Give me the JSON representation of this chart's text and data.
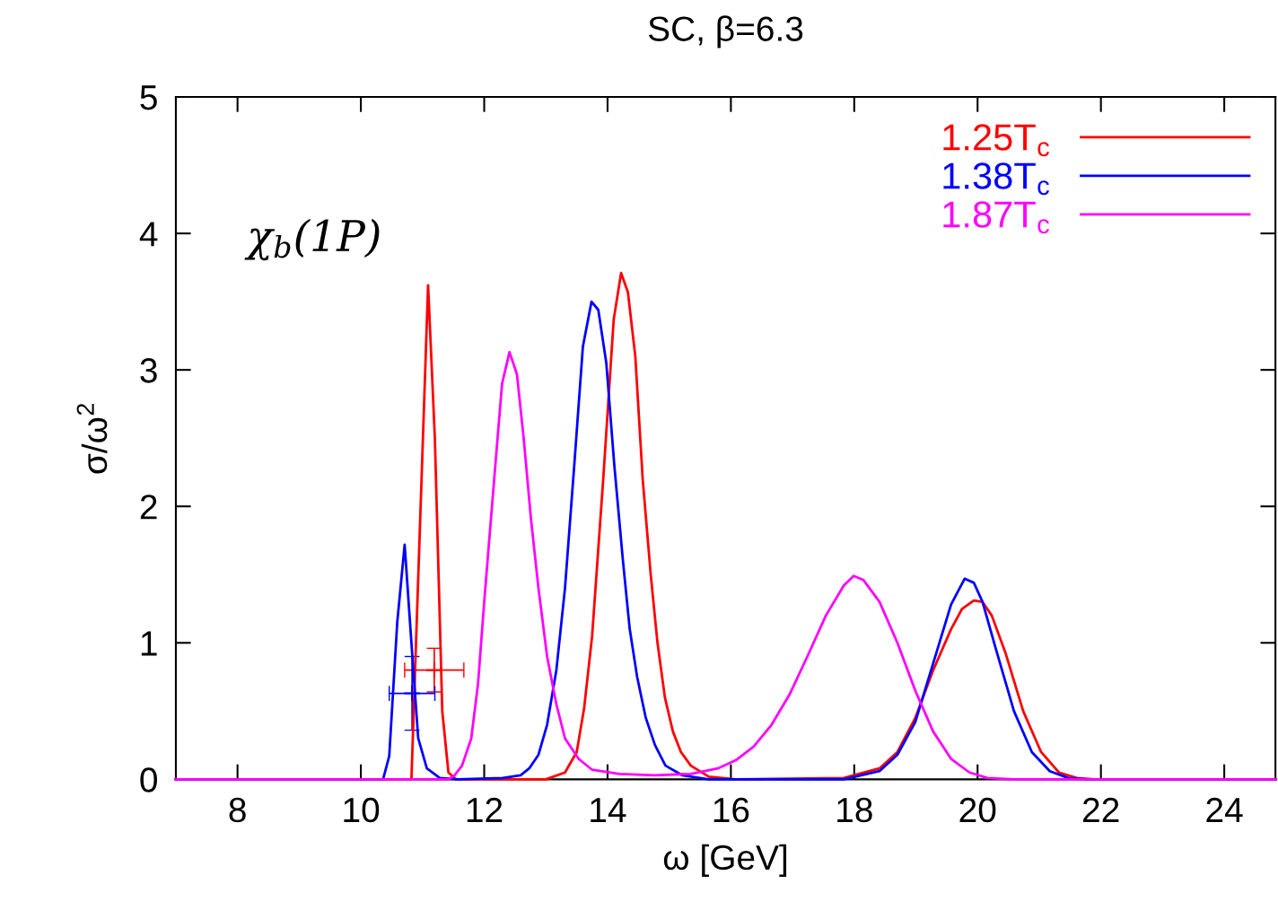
{
  "chart_data": {
    "type": "line",
    "title": "SC, β=6.3",
    "xlabel": "ω [GeV]",
    "ylabel": "σ/ω$^{2}$",
    "xlim": [
      7,
      24.83
    ],
    "ylim": [
      0,
      5
    ],
    "xticks": [
      8,
      10,
      12,
      14,
      16,
      18,
      20,
      22,
      24
    ],
    "yticks": [
      0,
      1,
      2,
      3,
      4,
      5
    ],
    "grid": false,
    "legend": "top right",
    "marker": "none",
    "line_style": "solid",
    "annotations": [
      "χ$_{b}$(1P)"
    ],
    "series": [
      {
        "name": "1.25T$_{c}$",
        "color": "#ff0000",
        "x": [
          7,
          10.82,
          11.09,
          11.2,
          11.32,
          11.42,
          11.54,
          13.0,
          13.31,
          13.5,
          13.62,
          13.75,
          13.93,
          14.1,
          14.22,
          14.33,
          14.45,
          14.57,
          14.7,
          14.81,
          14.93,
          15.06,
          15.19,
          15.35,
          15.64,
          16.08,
          17.83,
          18.41,
          18.7,
          18.99,
          19.28,
          19.57,
          19.75,
          19.94,
          20.08,
          20.23,
          20.45,
          20.74,
          21.03,
          21.32,
          21.61,
          21.9,
          24.83
        ],
        "values": [
          0,
          0,
          3.62,
          2.5,
          0.5,
          0.05,
          0,
          0,
          0.05,
          0.2,
          0.52,
          1.05,
          2.2,
          3.37,
          3.71,
          3.57,
          3.1,
          2.2,
          1.5,
          1.0,
          0.6,
          0.35,
          0.2,
          0.1,
          0.02,
          0,
          0.01,
          0.08,
          0.2,
          0.45,
          0.8,
          1.1,
          1.25,
          1.31,
          1.3,
          1.2,
          0.93,
          0.5,
          0.2,
          0.05,
          0.01,
          0,
          0
        ]
      },
      {
        "name": "1.38T$_{c}$",
        "color": "#0000ff",
        "x": [
          7,
          10.36,
          10.46,
          10.59,
          10.71,
          10.82,
          10.93,
          11.07,
          11.28,
          11.57,
          12.3,
          12.59,
          12.73,
          12.88,
          13.02,
          13.17,
          13.31,
          13.46,
          13.6,
          13.74,
          13.85,
          13.98,
          14.11,
          14.25,
          14.36,
          14.48,
          14.62,
          14.77,
          14.94,
          15.21,
          15.64,
          17.83,
          18.41,
          18.7,
          18.99,
          19.28,
          19.57,
          19.79,
          19.94,
          20.08,
          20.3,
          20.59,
          20.88,
          21.17,
          21.47,
          21.76,
          24.83
        ],
        "values": [
          0,
          0,
          0.17,
          1.15,
          1.72,
          1.0,
          0.3,
          0.08,
          0.01,
          0,
          0.01,
          0.03,
          0.08,
          0.18,
          0.4,
          0.8,
          1.4,
          2.3,
          3.17,
          3.5,
          3.44,
          3.05,
          2.3,
          1.6,
          1.1,
          0.75,
          0.45,
          0.25,
          0.1,
          0.03,
          0,
          0,
          0.06,
          0.18,
          0.42,
          0.85,
          1.28,
          1.47,
          1.44,
          1.3,
          0.95,
          0.5,
          0.2,
          0.06,
          0.01,
          0,
          0
        ]
      },
      {
        "name": "1.87T$_{c}$",
        "color": "#ff00ff",
        "x": [
          7,
          11.42,
          11.52,
          11.64,
          11.79,
          11.9,
          12.0,
          12.18,
          12.29,
          12.41,
          12.53,
          12.64,
          12.76,
          12.88,
          13.02,
          13.17,
          13.31,
          13.53,
          13.75,
          14.19,
          14.77,
          15.35,
          15.79,
          16.08,
          16.37,
          16.66,
          16.95,
          17.24,
          17.54,
          17.83,
          17.99,
          18.15,
          18.41,
          18.7,
          18.99,
          19.28,
          19.57,
          19.87,
          20.16,
          20.59,
          24.83
        ],
        "values": [
          0,
          0,
          0.03,
          0.1,
          0.3,
          0.7,
          1.3,
          2.3,
          2.9,
          3.13,
          2.97,
          2.5,
          1.9,
          1.4,
          0.9,
          0.55,
          0.3,
          0.15,
          0.07,
          0.04,
          0.03,
          0.04,
          0.08,
          0.14,
          0.24,
          0.4,
          0.62,
          0.9,
          1.2,
          1.42,
          1.49,
          1.46,
          1.3,
          1.0,
          0.65,
          0.35,
          0.15,
          0.05,
          0.01,
          0,
          0
        ]
      },
      {
        "type": "scatter",
        "color": "#ff0000",
        "marker": "cross",
        "x": [
          11.19
        ],
        "values": [
          0.8
        ],
        "errors": [
          0.16
        ],
        "xerrors": [
          0.48
        ]
      },
      {
        "type": "scatter",
        "color": "#0000ff",
        "marker": "cross",
        "x": [
          10.83
        ],
        "values": [
          0.63
        ],
        "errors": [
          0.27
        ],
        "xerrors": [
          0.37
        ]
      }
    ]
  }
}
